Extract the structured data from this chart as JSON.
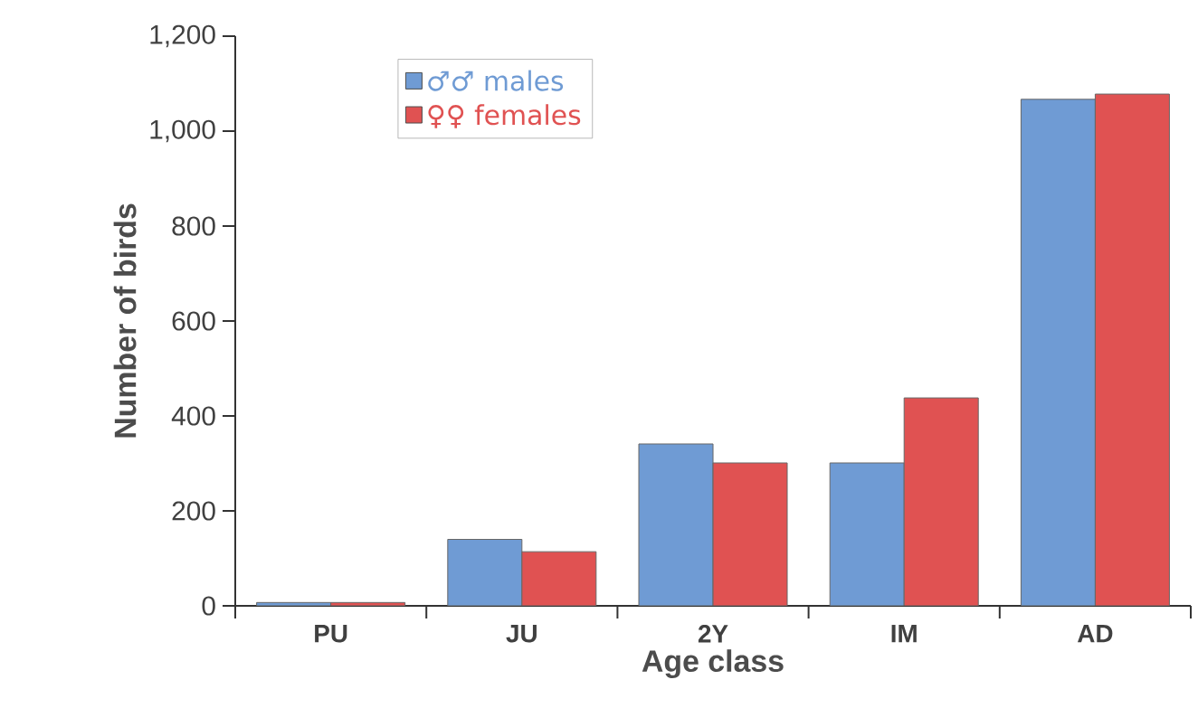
{
  "chart_data": {
    "type": "bar",
    "xlabel": "Age class",
    "ylabel": "Number of birds",
    "categories": [
      "PU",
      "JU",
      "2Y",
      "IM",
      "AD"
    ],
    "series": [
      {
        "name": "♂♂ males",
        "color": "#6f9bd4",
        "values": [
          7,
          140,
          341,
          301,
          1067
        ]
      },
      {
        "name": "♀♀ females",
        "color": "#e05252",
        "values": [
          7,
          114,
          301,
          438,
          1078
        ]
      }
    ],
    "ylim": [
      0,
      1200
    ],
    "yticks": [
      0,
      200,
      400,
      600,
      800,
      {
        "value": 1000,
        "label": "1,000"
      },
      {
        "value": 1200,
        "label": "1,200"
      }
    ],
    "legend": "top left",
    "grid": false
  }
}
